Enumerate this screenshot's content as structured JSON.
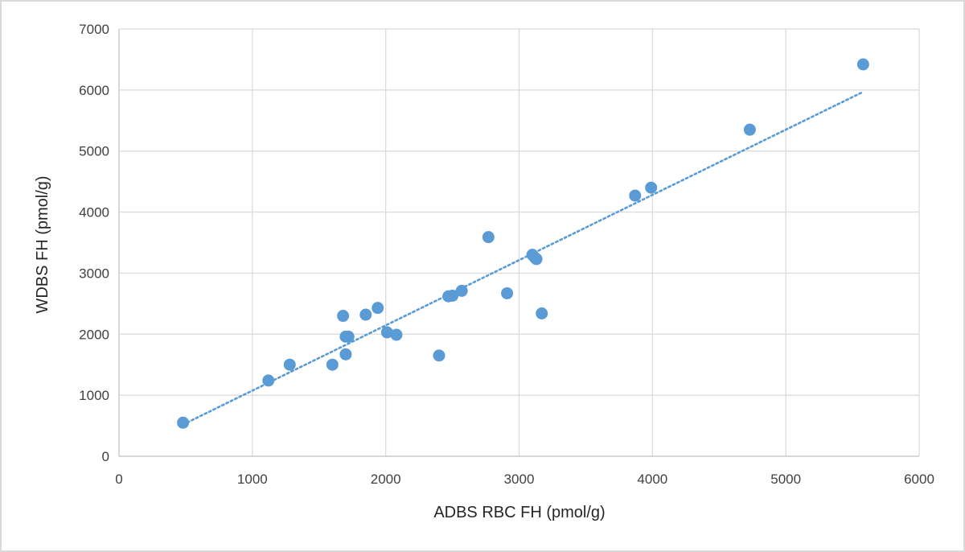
{
  "chart_data": {
    "type": "scatter",
    "xlabel": "ADBS RBC FH (pmol/g)",
    "ylabel": "WDBS FH (pmol/g)",
    "xlim": [
      0,
      6000
    ],
    "ylim": [
      0,
      7000
    ],
    "xticks": [
      "0",
      "1000",
      "2000",
      "3000",
      "4000",
      "5000",
      "6000"
    ],
    "yticks": [
      "0",
      "1000",
      "2000",
      "3000",
      "4000",
      "5000",
      "6000",
      "7000"
    ],
    "grid": true,
    "marker_color": "#5b9bd5",
    "trendline": {
      "style": "dotted",
      "x": [
        480,
        5580
      ],
      "y": [
        520,
        5970
      ]
    },
    "series": [
      {
        "x": [
          480,
          1120,
          1280,
          1600,
          1680,
          1700,
          1700,
          1720,
          1850,
          1940,
          2010,
          2080,
          2400,
          2470,
          2500,
          2570,
          2770,
          2910,
          3100,
          3120,
          3130,
          3170,
          3870,
          3990,
          4730,
          5580
        ],
        "y": [
          550,
          1240,
          1500,
          1500,
          2300,
          1670,
          1960,
          1960,
          2320,
          2430,
          2030,
          1990,
          1650,
          2620,
          2630,
          2710,
          3590,
          2670,
          3300,
          3250,
          3230,
          2340,
          4270,
          4400,
          5350,
          6420
        ]
      }
    ]
  }
}
